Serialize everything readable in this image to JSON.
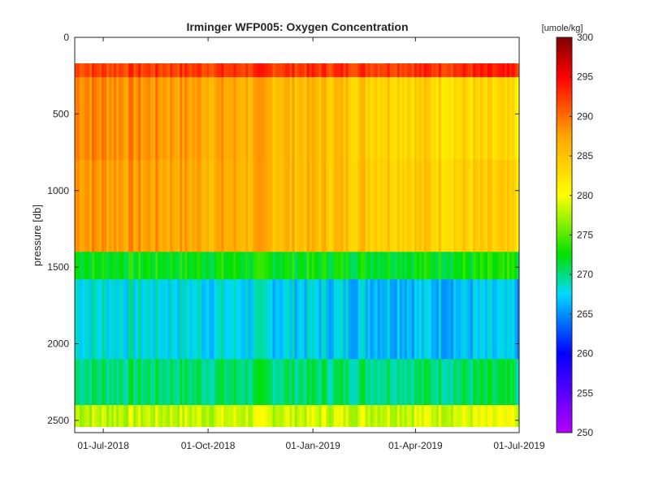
{
  "chart_data": {
    "type": "heatmap",
    "title": "Irminger WFP005:  Oxygen Concentration",
    "xlabel": "",
    "ylabel": "pressure [db]",
    "x_ticks": [
      "01-Jul-2018",
      "01-Oct-2018",
      "01-Jan-2019",
      "01-Apr-2019",
      "01-Jul-2019"
    ],
    "xlim": [
      "2018-06-06",
      "2019-07-01"
    ],
    "y_ticks": [
      0,
      500,
      1000,
      1500,
      2000,
      2500
    ],
    "ylim": [
      0,
      2580
    ],
    "y_reversed": true,
    "colorbar": {
      "label": "[umole/kg]",
      "ticks": [
        250,
        255,
        260,
        265,
        270,
        275,
        280,
        285,
        290,
        295,
        300
      ],
      "range": [
        250,
        300
      ],
      "colormap": "jet-like (purple-blue-cyan-green-yellow-orange-red-darkred)"
    },
    "data_extent": {
      "pressure_top": 170,
      "pressure_bottom": 2540
    },
    "grid": false,
    "layers": [
      {
        "pressure_range": [
          170,
          260
        ],
        "oxygen_start": 292,
        "oxygen_end": 293
      },
      {
        "pressure_range": [
          260,
          800
        ],
        "oxygen_start": 289,
        "oxygen_end": 282
      },
      {
        "pressure_range": [
          800,
          1400
        ],
        "oxygen_start": 288,
        "oxygen_end": 283
      },
      {
        "pressure_range": [
          1400,
          1580
        ],
        "oxygen_start": 272,
        "oxygen_end": 272
      },
      {
        "pressure_range": [
          1580,
          2100
        ],
        "oxygen_start": 268,
        "oxygen_end": 266
      },
      {
        "pressure_range": [
          2100,
          2400
        ],
        "oxygen_start": 270,
        "oxygen_end": 270
      },
      {
        "pressure_range": [
          2400,
          2540
        ],
        "oxygen_start": 278,
        "oxygen_end": 279
      }
    ]
  }
}
